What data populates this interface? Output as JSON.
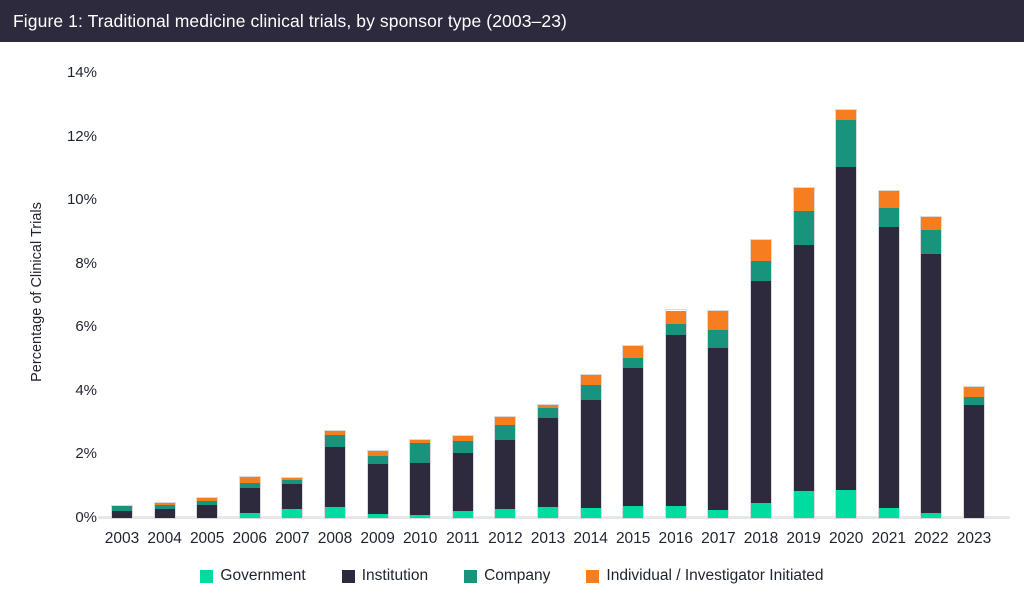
{
  "header": {
    "title": "Figure 1: Traditional medicine clinical trials, by sponsor type (2003–23)"
  },
  "colors": {
    "header_bg": "#2D2A3E",
    "background": "#FFFFFF",
    "axis_text": "#1E2430",
    "baseline": "#E8E8EA",
    "government": "#00DCA0",
    "institution": "#2D2A3D",
    "company": "#17947B",
    "individual": "#F57E20"
  },
  "chart_data": {
    "type": "bar",
    "stacked": true,
    "title": "Figure 1: Traditional medicine clinical trials, by sponsor type (2003–23)",
    "xlabel": "",
    "ylabel": "Percentage of Clinical Trials",
    "ylim": [
      0,
      14
    ],
    "y_ticks": [
      "0%",
      "2%",
      "4%",
      "6%",
      "8%",
      "10%",
      "12%",
      "14%"
    ],
    "grid": false,
    "legend_position": "bottom",
    "categories": [
      "2003",
      "2004",
      "2005",
      "2006",
      "2007",
      "2008",
      "2009",
      "2010",
      "2011",
      "2012",
      "2013",
      "2014",
      "2015",
      "2016",
      "2017",
      "2018",
      "2019",
      "2020",
      "2021",
      "2022",
      "2023"
    ],
    "series": [
      {
        "name": "Government",
        "key": "government",
        "color": "#00DCA0",
        "values": [
          0,
          0,
          0,
          0.17,
          0.27,
          0.34,
          0.13,
          0.09,
          0.22,
          0.27,
          0.35,
          0.33,
          0.38,
          0.38,
          0.26,
          0.48,
          0.85,
          0.89,
          0.32,
          0.16,
          0
        ]
      },
      {
        "name": "Institution",
        "key": "institution",
        "color": "#2D2A3D",
        "values": [
          0.22,
          0.27,
          0.4,
          0.79,
          0.81,
          1.9,
          1.57,
          1.65,
          1.84,
          2.2,
          2.81,
          3.38,
          4.33,
          5.39,
          5.1,
          6.98,
          7.75,
          10.15,
          8.82,
          8.16,
          3.57
        ]
      },
      {
        "name": "Company",
        "key": "company",
        "color": "#17947B",
        "values": [
          0.15,
          0.13,
          0.15,
          0.13,
          0.13,
          0.37,
          0.25,
          0.63,
          0.38,
          0.45,
          0.31,
          0.49,
          0.34,
          0.34,
          0.55,
          0.63,
          1.05,
          1.47,
          0.61,
          0.73,
          0.25
        ]
      },
      {
        "name": "Individual / Investigator Initiated",
        "key": "individual",
        "color": "#F57E20",
        "values": [
          0,
          0.06,
          0.07,
          0.19,
          0.06,
          0.13,
          0.15,
          0.1,
          0.14,
          0.25,
          0.08,
          0.29,
          0.35,
          0.42,
          0.59,
          0.65,
          0.73,
          0.34,
          0.53,
          0.42,
          0.29
        ]
      }
    ]
  }
}
